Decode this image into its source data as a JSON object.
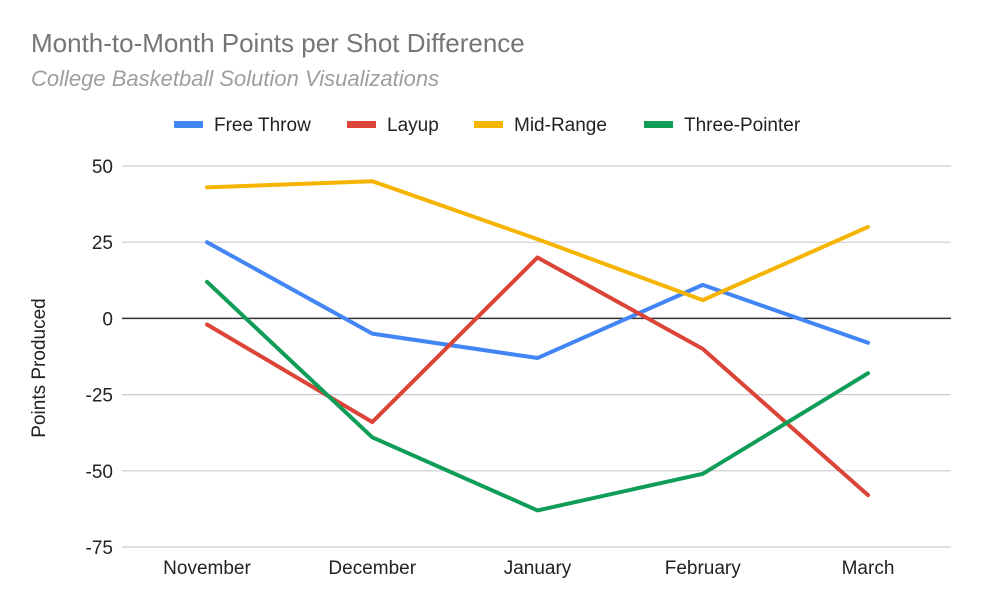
{
  "chart_data": {
    "type": "line",
    "title": "Month-to-Month Points per Shot Difference",
    "subtitle": "College Basketball Solution Visualizations",
    "xlabel": "",
    "ylabel": "Points Produced",
    "categories": [
      "November",
      "December",
      "January",
      "February",
      "March"
    ],
    "ylim": [
      -75,
      50
    ],
    "yticks": [
      50,
      25,
      0,
      -25,
      -50,
      -75
    ],
    "ytick_labels": [
      "50",
      "25",
      "0",
      "-25",
      "-50",
      "-75"
    ],
    "grid": true,
    "legend_position": "top",
    "series": [
      {
        "name": "Free Throw",
        "color": "#4285f4",
        "values": [
          25,
          -5,
          -13,
          11,
          -8
        ]
      },
      {
        "name": "Layup",
        "color": "#db4437",
        "values": [
          -2,
          -34,
          20,
          -10,
          -58
        ]
      },
      {
        "name": "Mid-Range",
        "color": "#f4b400",
        "values": [
          43,
          45,
          26,
          6,
          30
        ]
      },
      {
        "name": "Three-Pointer",
        "color": "#0f9d58",
        "values": [
          12,
          -39,
          -63,
          -51,
          -18
        ]
      }
    ]
  }
}
